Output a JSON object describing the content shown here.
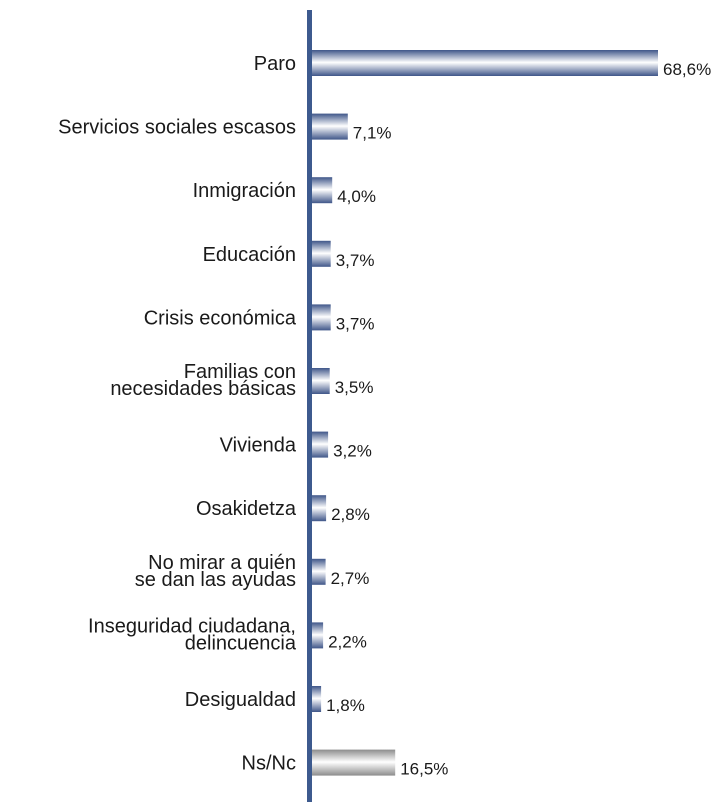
{
  "chart_data": {
    "type": "bar",
    "orientation": "horizontal",
    "categories": [
      [
        "Paro"
      ],
      [
        "Servicios sociales escasos"
      ],
      [
        "Inmigración"
      ],
      [
        "Educación"
      ],
      [
        "Crisis económica"
      ],
      [
        "Familias con",
        "necesidades básicas"
      ],
      [
        "Vivienda"
      ],
      [
        "Osakidetza"
      ],
      [
        "No mirar a quién",
        "se dan las ayudas"
      ],
      [
        "Inseguridad ciudadana,",
        "delincuencia"
      ],
      [
        "Desigualdad"
      ],
      [
        "Ns/Nc"
      ]
    ],
    "values": [
      68.6,
      7.1,
      4.0,
      3.7,
      3.7,
      3.5,
      3.2,
      2.8,
      2.7,
      2.2,
      1.8,
      16.5
    ],
    "value_labels": [
      "68,6%",
      "7,1%",
      "4,0%",
      "3,7%",
      "3,7%",
      "3,5%",
      "3,2%",
      "2,8%",
      "2,7%",
      "2,2%",
      "1,8%",
      "16,5%"
    ],
    "bar_style": [
      "blue",
      "blue",
      "blue",
      "blue",
      "blue",
      "blue",
      "blue",
      "blue",
      "blue",
      "blue",
      "blue",
      "gray"
    ],
    "xlim": [
      0,
      68.6
    ],
    "colors": {
      "axis": "#3d5a8e",
      "bar_blue_dark": "#3f5689",
      "bar_blue_light": "#ffffff",
      "bar_gray_dark": "#8c8c8c",
      "bar_gray_light": "#ffffff"
    },
    "grid": false,
    "legend": "none"
  }
}
